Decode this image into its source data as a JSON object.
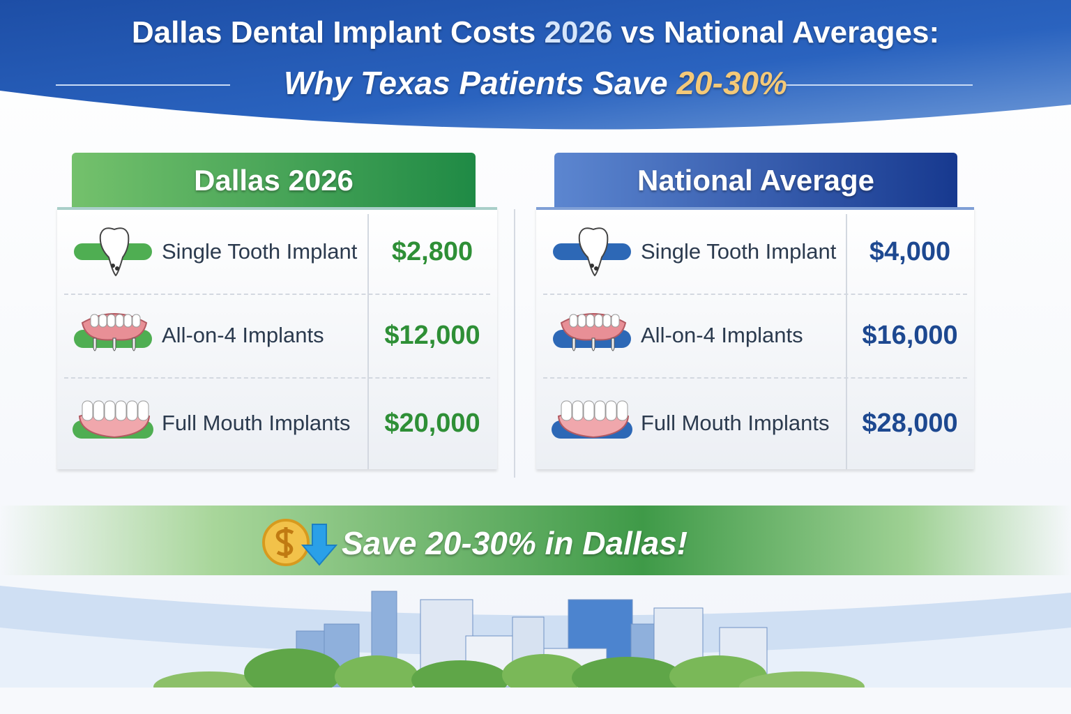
{
  "header": {
    "title": {
      "lead": "Dallas Dental Implant Costs",
      "year": "2026",
      "tail": "vs National Averages:"
    },
    "subtitle": {
      "lead": "Why Texas Patients Save",
      "highlight": "20-30%"
    }
  },
  "panels": [
    {
      "title": "Dallas 2026",
      "rows": [
        {
          "label": "Single Tooth Implant",
          "price": "$2,800"
        },
        {
          "label": "All-on-4 Implants",
          "price": "$12,000"
        },
        {
          "label": "Full Mouth Implants",
          "price": "$20,000"
        }
      ]
    },
    {
      "title": "National Average",
      "rows": [
        {
          "label": "Single Tooth Implant",
          "price": "$4,000"
        },
        {
          "label": "All-on-4 Implants",
          "price": "$16,000"
        },
        {
          "label": "Full Mouth Implants",
          "price": "$28,000"
        }
      ]
    }
  ],
  "banner": {
    "text": "Save 20-30% in Dallas!"
  }
}
